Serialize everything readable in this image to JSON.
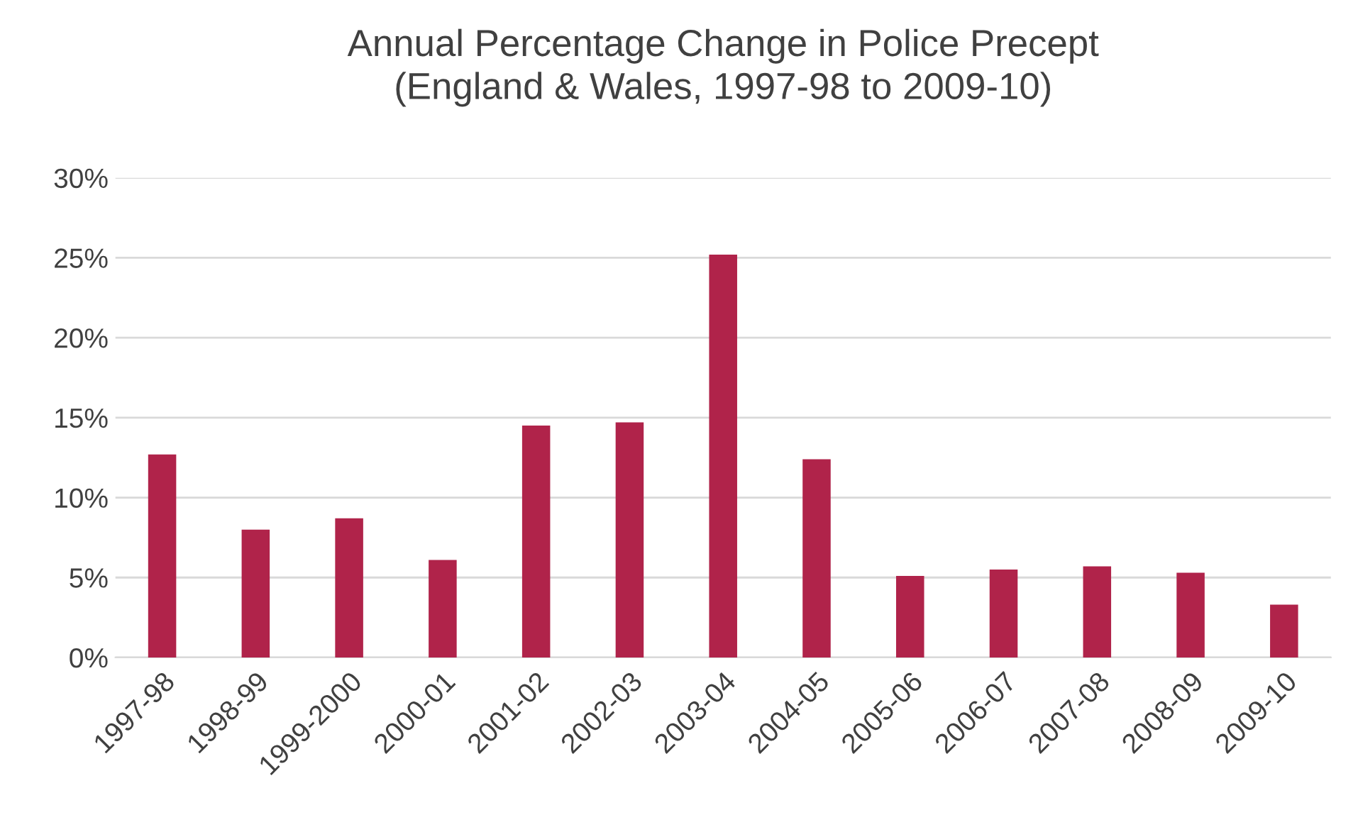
{
  "chart_data": {
    "type": "bar",
    "title": "Annual Percentage Change in Police Precept\n(England & Wales, 1997-98 to 2009-10)",
    "categories": [
      "1997-98",
      "1998-99",
      "1999-2000",
      "2000-01",
      "2001-02",
      "2002-03",
      "2003-04",
      "2004-05",
      "2005-06",
      "2006-07",
      "2007-08",
      "2008-09",
      "2009-10"
    ],
    "values": [
      12.7,
      8.0,
      8.7,
      6.1,
      14.5,
      14.7,
      25.2,
      12.4,
      5.1,
      5.5,
      5.7,
      5.3,
      3.3
    ],
    "color": "#b0234a",
    "ylim": [
      0,
      30
    ],
    "yticks": [
      {
        "value": 0,
        "label": "0%"
      },
      {
        "value": 5,
        "label": "5%"
      },
      {
        "value": 10,
        "label": "10%"
      },
      {
        "value": 15,
        "label": "15%"
      },
      {
        "value": 20,
        "label": "20%"
      },
      {
        "value": 25,
        "label": "25%"
      },
      {
        "value": 30,
        "label": "30%"
      }
    ],
    "grid": "y"
  }
}
